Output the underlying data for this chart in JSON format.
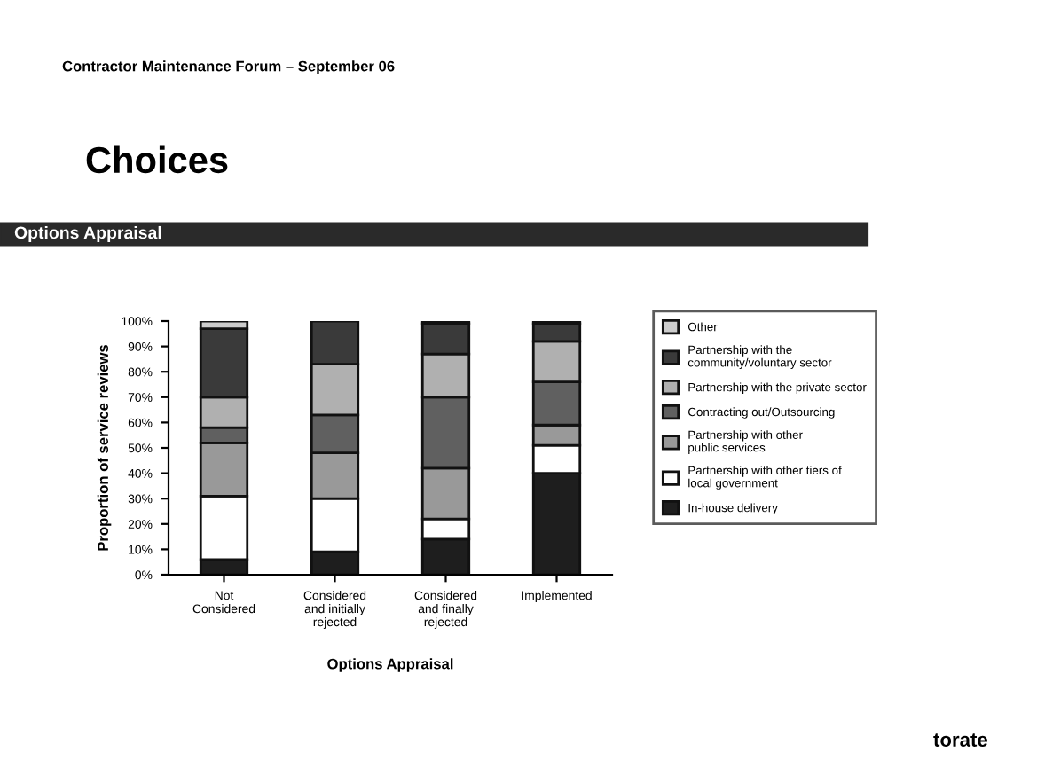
{
  "chart_data": {
    "type": "bar",
    "stacked": true,
    "title": "Choices",
    "subtitle": "Options Appraisal",
    "xlabel": "Options Appraisal",
    "ylabel": "Proportion of service reviews",
    "annotations": [
      "Contractor Maintenance Forum – September 06",
      "torate"
    ],
    "categories": [
      "Not\nConsidered",
      "Considered\nand initially\nrejected",
      "Considered\nand finally\nrejected",
      "Implemented"
    ],
    "series": [
      {
        "name": "In-house delivery",
        "color": "#1e1e1e",
        "values": [
          6,
          9,
          14,
          40
        ]
      },
      {
        "name": "Partnership with other tiers of\nlocal government",
        "color": "#ffffff",
        "values": [
          25,
          21,
          8,
          11
        ]
      },
      {
        "name": "Partnership with other\npublic services",
        "color": "#999999",
        "values": [
          21,
          18,
          20,
          8
        ]
      },
      {
        "name": "Contracting out/Outsourcing",
        "color": "#606060",
        "values": [
          6,
          15,
          28,
          17
        ]
      },
      {
        "name": "Partnership with the private sector",
        "color": "#b0b0b0",
        "values": [
          12,
          20,
          17,
          16
        ]
      },
      {
        "name": "Partnership with the\ncommunity/voluntary sector",
        "color": "#3a3a3a",
        "values": [
          27,
          17,
          12,
          7
        ]
      },
      {
        "name": "Other",
        "color": "#cccccc",
        "values": [
          3,
          null,
          1,
          1
        ]
      }
    ],
    "ylim": [
      0,
      100
    ],
    "yticks": [
      {
        "value": 0,
        "label": "0%"
      },
      {
        "value": 10,
        "label": "10%"
      },
      {
        "value": 20,
        "label": "20%"
      },
      {
        "value": 30,
        "label": "30%"
      },
      {
        "value": 40,
        "label": "40%"
      },
      {
        "value": 50,
        "label": "50%"
      },
      {
        "value": 60,
        "label": "60%"
      },
      {
        "value": 70,
        "label": "70%"
      },
      {
        "value": 80,
        "label": "80%"
      },
      {
        "value": 90,
        "label": "90%"
      },
      {
        "value": 100,
        "label": "100%"
      }
    ],
    "grid": false,
    "legend": "right"
  }
}
